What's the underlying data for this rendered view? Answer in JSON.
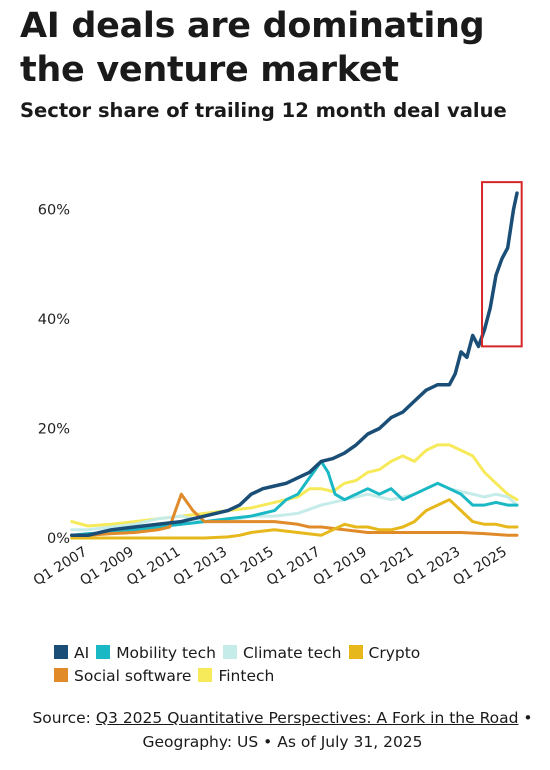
{
  "chart_data": {
    "type": "line",
    "title": "AI deals are dominating the venture market",
    "subtitle": "Sector share of trailing 12 month deal value",
    "ylim": [
      0,
      65
    ],
    "xlim": [
      2007,
      2025.7
    ],
    "x_ticks": [
      {
        "value": 2007,
        "label": "Q1 2007"
      },
      {
        "value": 2009,
        "label": "Q1 2009"
      },
      {
        "value": 2011,
        "label": "Q1 2011"
      },
      {
        "value": 2013,
        "label": "Q1 2013"
      },
      {
        "value": 2015,
        "label": "Q1 2015"
      },
      {
        "value": 2017,
        "label": "Q1 2017"
      },
      {
        "value": 2019,
        "label": "Q1 2019"
      },
      {
        "value": 2021,
        "label": "Q1 2021"
      },
      {
        "value": 2023,
        "label": "Q1 2023"
      },
      {
        "value": 2025,
        "label": "Q1 2025"
      }
    ],
    "y_ticks": [
      {
        "value": 0,
        "label": "0%"
      },
      {
        "value": 20,
        "label": "20%"
      },
      {
        "value": 40,
        "label": "40%"
      },
      {
        "value": 60,
        "label": "60%"
      }
    ],
    "grid": false,
    "legend_position": "bottom",
    "highlight": {
      "x_from": 2023.9,
      "x_to": 2025.6,
      "y_from": 35,
      "y_to": 65,
      "color": "#d62728"
    },
    "series": [
      {
        "name": "Fintech",
        "color": "#f6ea5a",
        "x": [
          2006.3,
          2007,
          2008,
          2009,
          2010,
          2011,
          2012,
          2013,
          2014,
          2015,
          2016,
          2016.5,
          2017,
          2017.5,
          2018,
          2018.5,
          2019,
          2019.5,
          2020,
          2020.5,
          2021,
          2021.5,
          2022,
          2022.5,
          2023,
          2023.5,
          2024,
          2024.5,
          2025,
          2025.4
        ],
        "y": [
          3,
          2.2,
          2.5,
          3,
          3.5,
          4,
          4.5,
          5,
          5.5,
          6.5,
          7.5,
          9,
          9,
          8.5,
          10,
          10.5,
          12,
          12.5,
          14,
          15,
          14,
          16,
          17,
          17,
          16,
          15,
          12,
          10,
          8,
          7
        ]
      },
      {
        "name": "Climate tech",
        "color": "#c6ecea",
        "x": [
          2006.3,
          2007,
          2008,
          2009,
          2010,
          2011,
          2012,
          2013,
          2014,
          2015,
          2016,
          2017,
          2018,
          2019,
          2020,
          2021,
          2021.5,
          2022,
          2022.5,
          2023,
          2023.5,
          2024,
          2024.5,
          2025,
          2025.4
        ],
        "y": [
          1.5,
          1.5,
          2,
          2.5,
          3.5,
          4,
          3,
          3,
          4,
          4,
          4.5,
          6,
          7,
          8,
          7,
          8,
          9,
          10,
          9,
          8.5,
          8,
          7.5,
          8,
          7.5,
          6
        ]
      },
      {
        "name": "Mobility tech",
        "color": "#1ab8c4",
        "x": [
          2006.3,
          2007,
          2008,
          2009,
          2010,
          2011,
          2012,
          2013,
          2014,
          2015,
          2015.5,
          2016,
          2016.5,
          2017,
          2017.3,
          2017.6,
          2018,
          2018.5,
          2019,
          2019.5,
          2020,
          2020.5,
          2021,
          2021.5,
          2022,
          2022.5,
          2023,
          2023.5,
          2024,
          2024.5,
          2025,
          2025.4
        ],
        "y": [
          0.5,
          0.8,
          1,
          1.5,
          2,
          2.5,
          3,
          3.5,
          4,
          5,
          7,
          8,
          11,
          14,
          12,
          8,
          7,
          8,
          9,
          8,
          9,
          7,
          8,
          9,
          10,
          9,
          8,
          6,
          6,
          6.5,
          6,
          6
        ]
      },
      {
        "name": "Social software",
        "color": "#e08a2a",
        "x": [
          2006.3,
          2007,
          2008,
          2009,
          2010,
          2010.5,
          2011,
          2011.5,
          2012,
          2013,
          2014,
          2015,
          2016,
          2016.5,
          2017,
          2018,
          2019,
          2020,
          2021,
          2022,
          2023,
          2024,
          2025,
          2025.4
        ],
        "y": [
          0.5,
          0.5,
          0.8,
          1,
          1.5,
          2,
          8,
          5,
          3,
          3,
          3,
          3,
          2.5,
          2,
          2,
          1.5,
          1,
          1,
          1,
          1,
          1,
          0.8,
          0.5,
          0.5
        ]
      },
      {
        "name": "Crypto",
        "color": "#e6b81c",
        "x": [
          2006.3,
          2007,
          2008,
          2009,
          2010,
          2011,
          2012,
          2013,
          2013.5,
          2014,
          2015,
          2016,
          2017,
          2017.5,
          2018,
          2018.5,
          2019,
          2019.5,
          2020,
          2020.5,
          2021,
          2021.5,
          2022,
          2022.5,
          2023,
          2023.5,
          2024,
          2024.5,
          2025,
          2025.4
        ],
        "y": [
          0,
          0,
          0,
          0,
          0,
          0,
          0,
          0.2,
          0.5,
          1,
          1.5,
          1,
          0.5,
          1.5,
          2.5,
          2,
          2,
          1.5,
          1.5,
          2,
          3,
          5,
          6,
          7,
          5,
          3,
          2.5,
          2.5,
          2,
          2
        ]
      },
      {
        "name": "AI",
        "color": "#1a4e76",
        "x": [
          2006.3,
          2007,
          2007.5,
          2008,
          2009,
          2010,
          2011,
          2012,
          2013,
          2013.5,
          2014,
          2014.5,
          2015,
          2015.5,
          2016,
          2016.5,
          2017,
          2017.5,
          2018,
          2018.5,
          2019,
          2019.5,
          2020,
          2020.5,
          2021,
          2021.5,
          2022,
          2022.5,
          2022.75,
          2023,
          2023.25,
          2023.5,
          2023.75,
          2024,
          2024.25,
          2024.5,
          2024.75,
          2025,
          2025.25,
          2025.4
        ],
        "y": [
          0.5,
          0.5,
          1,
          1.5,
          2,
          2.5,
          3,
          4,
          5,
          6,
          8,
          9,
          9.5,
          10,
          11,
          12,
          14,
          14.5,
          15.5,
          17,
          19,
          20,
          22,
          23,
          25,
          27,
          28,
          28,
          30,
          34,
          33,
          37,
          35,
          38,
          42,
          48,
          51,
          53,
          60,
          63
        ]
      }
    ]
  },
  "legend": [
    {
      "name": "AI",
      "color": "#1a4e76"
    },
    {
      "name": "Mobility tech",
      "color": "#1ab8c4"
    },
    {
      "name": "Climate tech",
      "color": "#c6ecea"
    },
    {
      "name": "Crypto",
      "color": "#e6b81c"
    },
    {
      "name": "Social software",
      "color": "#e08a2a"
    },
    {
      "name": "Fintech",
      "color": "#f6ea5a"
    }
  ],
  "source": {
    "prefix": "Source: ",
    "link_text": "Q3 2025 Quantitative Perspectives: A Fork in the Road",
    "suffix": " • Geography: US • As of July 31, 2025"
  }
}
